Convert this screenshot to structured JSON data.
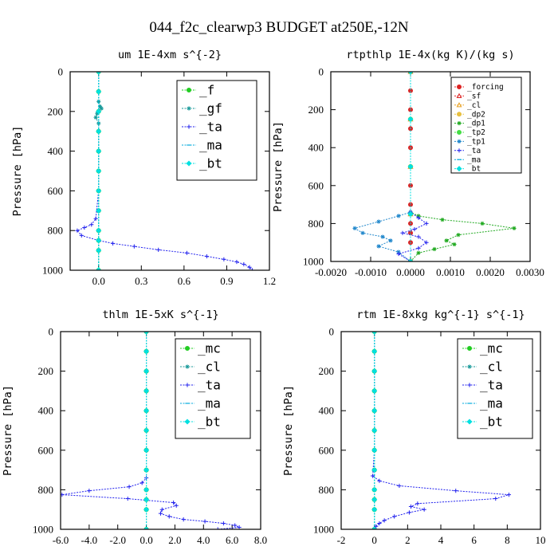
{
  "figure": {
    "title": "044_f2c_clearwp3  BUDGET at250E,-12N"
  },
  "chart_data": [
    {
      "type": "line",
      "title": "um  1E-4xm s^{-2}",
      "ylabel": "Pressure [hPa]",
      "xlim": [
        -0.2,
        1.2
      ],
      "ylim": [
        1000,
        0
      ],
      "xticks": [
        "0.0",
        "0.3",
        "0.6",
        "0.9",
        "1.2"
      ],
      "xtick_values": [
        0,
        0.3,
        0.6,
        0.9,
        1.2
      ],
      "yticks": [
        "0",
        "200",
        "400",
        "600",
        "800",
        "1000"
      ],
      "ytick_values": [
        0,
        200,
        400,
        600,
        800,
        1000
      ],
      "legend_position": "top-right",
      "series": [
        {
          "name": "_f",
          "color": "#22cc22",
          "marker": "circle",
          "x": [
            0,
            0,
            0,
            0,
            0,
            0,
            0,
            0,
            0,
            0,
            0,
            0
          ],
          "y": [
            0,
            100,
            200,
            300,
            400,
            500,
            600,
            700,
            800,
            850,
            900,
            1000
          ]
        },
        {
          "name": "_gf",
          "color": "#1a9a9a",
          "marker": "star",
          "x": [
            0,
            0,
            0.01,
            0.02,
            -0.01,
            -0.02,
            0,
            0,
            0,
            0
          ],
          "y": [
            0,
            150,
            175,
            185,
            210,
            230,
            260,
            400,
            700,
            1000
          ]
        },
        {
          "name": "_ta",
          "color": "#2222ee",
          "marker": "plus",
          "x": [
            0,
            0,
            -0.02,
            -0.05,
            -0.1,
            -0.15,
            -0.12,
            0,
            0.1,
            0.25,
            0.42,
            0.62,
            0.76,
            0.88,
            0.97,
            1.02,
            1.06,
            1.08
          ],
          "y": [
            0,
            600,
            740,
            770,
            785,
            800,
            825,
            850,
            865,
            880,
            897,
            913,
            930,
            945,
            958,
            970,
            985,
            1000
          ]
        },
        {
          "name": "_ma",
          "color": "#00aadd",
          "marker": "dash",
          "x": [
            0,
            0,
            0,
            0,
            0,
            0
          ],
          "y": [
            0,
            200,
            400,
            600,
            800,
            1000
          ]
        },
        {
          "name": "_bt",
          "color": "#00e0e0",
          "marker": "diamond",
          "x": [
            0,
            0,
            0,
            0,
            0,
            0,
            0,
            0,
            0,
            0,
            0,
            0
          ],
          "y": [
            0,
            100,
            200,
            300,
            400,
            500,
            600,
            700,
            800,
            850,
            900,
            1000
          ]
        }
      ]
    },
    {
      "type": "line",
      "title": "rtpthlp  1E-4x(kg K)/(kg s)",
      "ylabel": "Pressure [hPa]",
      "xlim": [
        -0.002,
        0.003
      ],
      "ylim": [
        1000,
        0
      ],
      "xticks": [
        "-0.0020",
        "-0.0010",
        "0.0000",
        "0.0010",
        "0.0020",
        "0.0030"
      ],
      "xtick_values": [
        -0.002,
        -0.001,
        0,
        0.001,
        0.002,
        0.003
      ],
      "yticks": [
        "0",
        "200",
        "400",
        "600",
        "800",
        "1000"
      ],
      "ytick_values": [
        0,
        200,
        400,
        600,
        800,
        1000
      ],
      "legend_position": "top-right",
      "series": [
        {
          "name": "_forcing",
          "color": "#dd2222",
          "marker": "circle",
          "x": [
            0,
            0,
            0,
            0,
            0,
            0,
            0,
            0,
            0,
            0,
            0,
            0
          ],
          "y": [
            0,
            100,
            200,
            300,
            400,
            500,
            600,
            700,
            800,
            850,
            900,
            1000
          ]
        },
        {
          "name": "_sf",
          "color": "#dd2222",
          "marker": "triangle",
          "x": [
            0,
            0,
            0,
            0,
            0
          ],
          "y": [
            0,
            250,
            500,
            750,
            1000
          ]
        },
        {
          "name": "_cl",
          "color": "#e8a020",
          "marker": "triangle",
          "x": [
            0,
            0,
            0,
            0,
            0
          ],
          "y": [
            0,
            250,
            500,
            750,
            1000
          ]
        },
        {
          "name": "_dp2",
          "color": "#e8c040",
          "marker": "circle",
          "x": [
            0,
            0,
            0,
            0,
            0
          ],
          "y": [
            0,
            250,
            500,
            750,
            1000
          ]
        },
        {
          "name": "_dp1",
          "color": "#22aa22",
          "marker": "star",
          "x": [
            0,
            0,
            0.0002,
            0.0008,
            0.0018,
            0.0026,
            0.0012,
            0.0009,
            0.0011,
            0.0006,
            0.0002,
            0
          ],
          "y": [
            0,
            740,
            760,
            780,
            800,
            825,
            860,
            890,
            910,
            935,
            955,
            1000
          ]
        },
        {
          "name": "_tp2",
          "color": "#44dd44",
          "marker": "circle",
          "x": [
            0,
            0,
            0,
            0,
            0
          ],
          "y": [
            0,
            250,
            500,
            750,
            1000
          ]
        },
        {
          "name": "_tp1",
          "color": "#2288cc",
          "marker": "star",
          "x": [
            0,
            0,
            -0.0003,
            -0.0008,
            -0.0014,
            -0.0012,
            -0.0007,
            -0.0005,
            -0.0008,
            -0.0003,
            0
          ],
          "y": [
            0,
            740,
            760,
            790,
            825,
            850,
            870,
            890,
            920,
            950,
            1000
          ]
        },
        {
          "name": "_ta",
          "color": "#2222ee",
          "marker": "plus",
          "x": [
            0,
            0,
            0.0002,
            0.0004,
            0.0001,
            -0.0002,
            0.0002,
            0.0004,
            0.0002,
            -0.0003,
            0
          ],
          "y": [
            0,
            740,
            770,
            800,
            830,
            850,
            870,
            900,
            930,
            960,
            1000
          ]
        },
        {
          "name": "_ma",
          "color": "#00aadd",
          "marker": "dash",
          "x": [
            0,
            0,
            0,
            0,
            0
          ],
          "y": [
            0,
            250,
            500,
            750,
            1000
          ]
        },
        {
          "name": "_bt",
          "color": "#00e0e0",
          "marker": "diamond",
          "x": [
            0,
            0,
            0,
            0,
            0
          ],
          "y": [
            0,
            250,
            500,
            750,
            1000
          ]
        }
      ]
    },
    {
      "type": "line",
      "title": "thlm  1E-5xK s^{-1}",
      "ylabel": "Pressure [hPa]",
      "xlim": [
        -6,
        8
      ],
      "ylim": [
        1000,
        0
      ],
      "xticks": [
        "-6.0",
        "-4.0",
        "-2.0",
        "0.0",
        "2.0",
        "4.0",
        "6.0",
        "8.0"
      ],
      "xtick_values": [
        -6,
        -4,
        -2,
        0,
        2,
        4,
        6,
        8
      ],
      "yticks": [
        "0",
        "200",
        "400",
        "600",
        "800",
        "1000"
      ],
      "ytick_values": [
        0,
        200,
        400,
        600,
        800,
        1000
      ],
      "legend_position": "top-right",
      "series": [
        {
          "name": "_mc",
          "color": "#22cc22",
          "marker": "circle",
          "x": [
            0,
            0,
            0,
            0,
            0,
            0,
            0,
            0,
            0,
            0,
            0,
            0
          ],
          "y": [
            0,
            100,
            200,
            300,
            400,
            500,
            600,
            700,
            800,
            850,
            900,
            1000
          ]
        },
        {
          "name": "_cl",
          "color": "#1a9a9a",
          "marker": "star",
          "x": [
            0,
            0,
            0,
            0,
            0,
            0
          ],
          "y": [
            0,
            200,
            400,
            600,
            800,
            1000
          ]
        },
        {
          "name": "_ta",
          "color": "#2222ee",
          "marker": "plus",
          "x": [
            0,
            0,
            0,
            -0.3,
            -1.2,
            -4,
            -5.9,
            -1.3,
            1.9,
            2.1,
            1.1,
            1.0,
            1.6,
            2.6,
            4.1,
            5.4,
            6.2,
            6.5,
            5.0
          ],
          "y": [
            0,
            600,
            740,
            765,
            785,
            805,
            825,
            845,
            865,
            880,
            900,
            920,
            935,
            950,
            960,
            970,
            980,
            990,
            1000
          ]
        },
        {
          "name": "_ma",
          "color": "#00aadd",
          "marker": "dash",
          "x": [
            0,
            0,
            0,
            0,
            0,
            0
          ],
          "y": [
            0,
            200,
            400,
            600,
            800,
            1000
          ]
        },
        {
          "name": "_bt",
          "color": "#00e0e0",
          "marker": "diamond",
          "x": [
            0,
            0,
            0,
            0,
            0,
            0,
            0,
            0,
            0,
            0,
            0,
            0
          ],
          "y": [
            0,
            100,
            200,
            300,
            400,
            500,
            600,
            700,
            800,
            850,
            900,
            1000
          ]
        }
      ]
    },
    {
      "type": "line",
      "title": "rtm  1E-8xkg kg^{-1} s^{-1}",
      "ylabel": "Pressure [hPa]",
      "xlim": [
        -2,
        10
      ],
      "ylim": [
        1000,
        0
      ],
      "xticks": [
        "-2",
        "0",
        "2",
        "4",
        "6",
        "8",
        "10"
      ],
      "xtick_values": [
        -2,
        0,
        2,
        4,
        6,
        8,
        10
      ],
      "yticks": [
        "0",
        "200",
        "400",
        "600",
        "800",
        "1000"
      ],
      "ytick_values": [
        0,
        200,
        400,
        600,
        800,
        1000
      ],
      "legend_position": "top-right",
      "series": [
        {
          "name": "_mc",
          "color": "#22cc22",
          "marker": "circle",
          "x": [
            0,
            0,
            0,
            0,
            0,
            0,
            0,
            0,
            0,
            0,
            0,
            0
          ],
          "y": [
            0,
            100,
            200,
            300,
            400,
            500,
            600,
            700,
            800,
            850,
            900,
            1000
          ]
        },
        {
          "name": "_cl",
          "color": "#1a9a9a",
          "marker": "star",
          "x": [
            0,
            0,
            0,
            0,
            0,
            0
          ],
          "y": [
            0,
            200,
            400,
            600,
            800,
            1000
          ]
        },
        {
          "name": "_ta",
          "color": "#2222ee",
          "marker": "plus",
          "x": [
            0,
            0,
            -0.1,
            0.3,
            1.5,
            4.9,
            8.1,
            7.3,
            2.6,
            2.2,
            3.0,
            2.1,
            1.2,
            0.6,
            0.3,
            0.1,
            0
          ],
          "y": [
            0,
            600,
            730,
            755,
            780,
            805,
            825,
            845,
            870,
            885,
            900,
            915,
            935,
            955,
            970,
            985,
            1000
          ]
        },
        {
          "name": "_ma",
          "color": "#00aadd",
          "marker": "dash",
          "x": [
            0,
            0,
            0,
            0,
            0,
            0
          ],
          "y": [
            0,
            200,
            400,
            600,
            800,
            1000
          ]
        },
        {
          "name": "_bt",
          "color": "#00e0e0",
          "marker": "diamond",
          "x": [
            0,
            0,
            0,
            0,
            0,
            0,
            0,
            0,
            0,
            0,
            0,
            0
          ],
          "y": [
            0,
            100,
            200,
            300,
            400,
            500,
            600,
            700,
            800,
            850,
            900,
            1000
          ]
        }
      ]
    }
  ]
}
